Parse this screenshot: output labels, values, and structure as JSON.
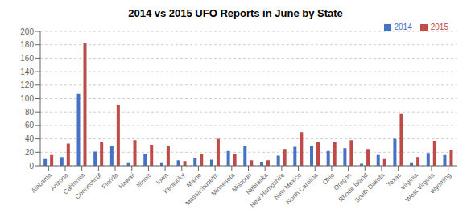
{
  "chart_data": {
    "type": "bar",
    "title": "2014 vs 2015 UFO Reports in June by State",
    "categories": [
      "Alabama",
      "Arizona",
      "California",
      "Connecticut",
      "Florida",
      "Hawaii",
      "Illinois",
      "Iowa",
      "Kentucky",
      "Maine",
      "Massachusetts",
      "Minnesota",
      "Missouri",
      "Nebraska",
      "New Hampshire",
      "New Mexico",
      "North Carolina",
      "Ohio",
      "Oregon",
      "Rhode Island",
      "South Dakota",
      "Texas",
      "Virginia",
      "West Virginia",
      "Wyoming"
    ],
    "series": [
      {
        "name": "2014",
        "color": "#4472C4",
        "values": [
          10,
          13,
          107,
          21,
          30,
          5,
          18,
          5,
          8,
          11,
          9,
          22,
          29,
          6,
          15,
          28,
          29,
          22,
          26,
          3,
          16,
          40,
          5,
          19,
          16
        ]
      },
      {
        "name": "2015",
        "color": "#BE4B48",
        "values": [
          16,
          33,
          182,
          35,
          91,
          38,
          31,
          30,
          7,
          17,
          40,
          17,
          8,
          8,
          25,
          50,
          35,
          35,
          38,
          25,
          10,
          77,
          13,
          37,
          23
        ]
      }
    ],
    "ylim": [
      0,
      200
    ],
    "yticks": [
      0,
      20,
      40,
      60,
      80,
      100,
      120,
      140,
      160,
      180,
      200
    ],
    "grid": true,
    "legend": "upper right"
  }
}
